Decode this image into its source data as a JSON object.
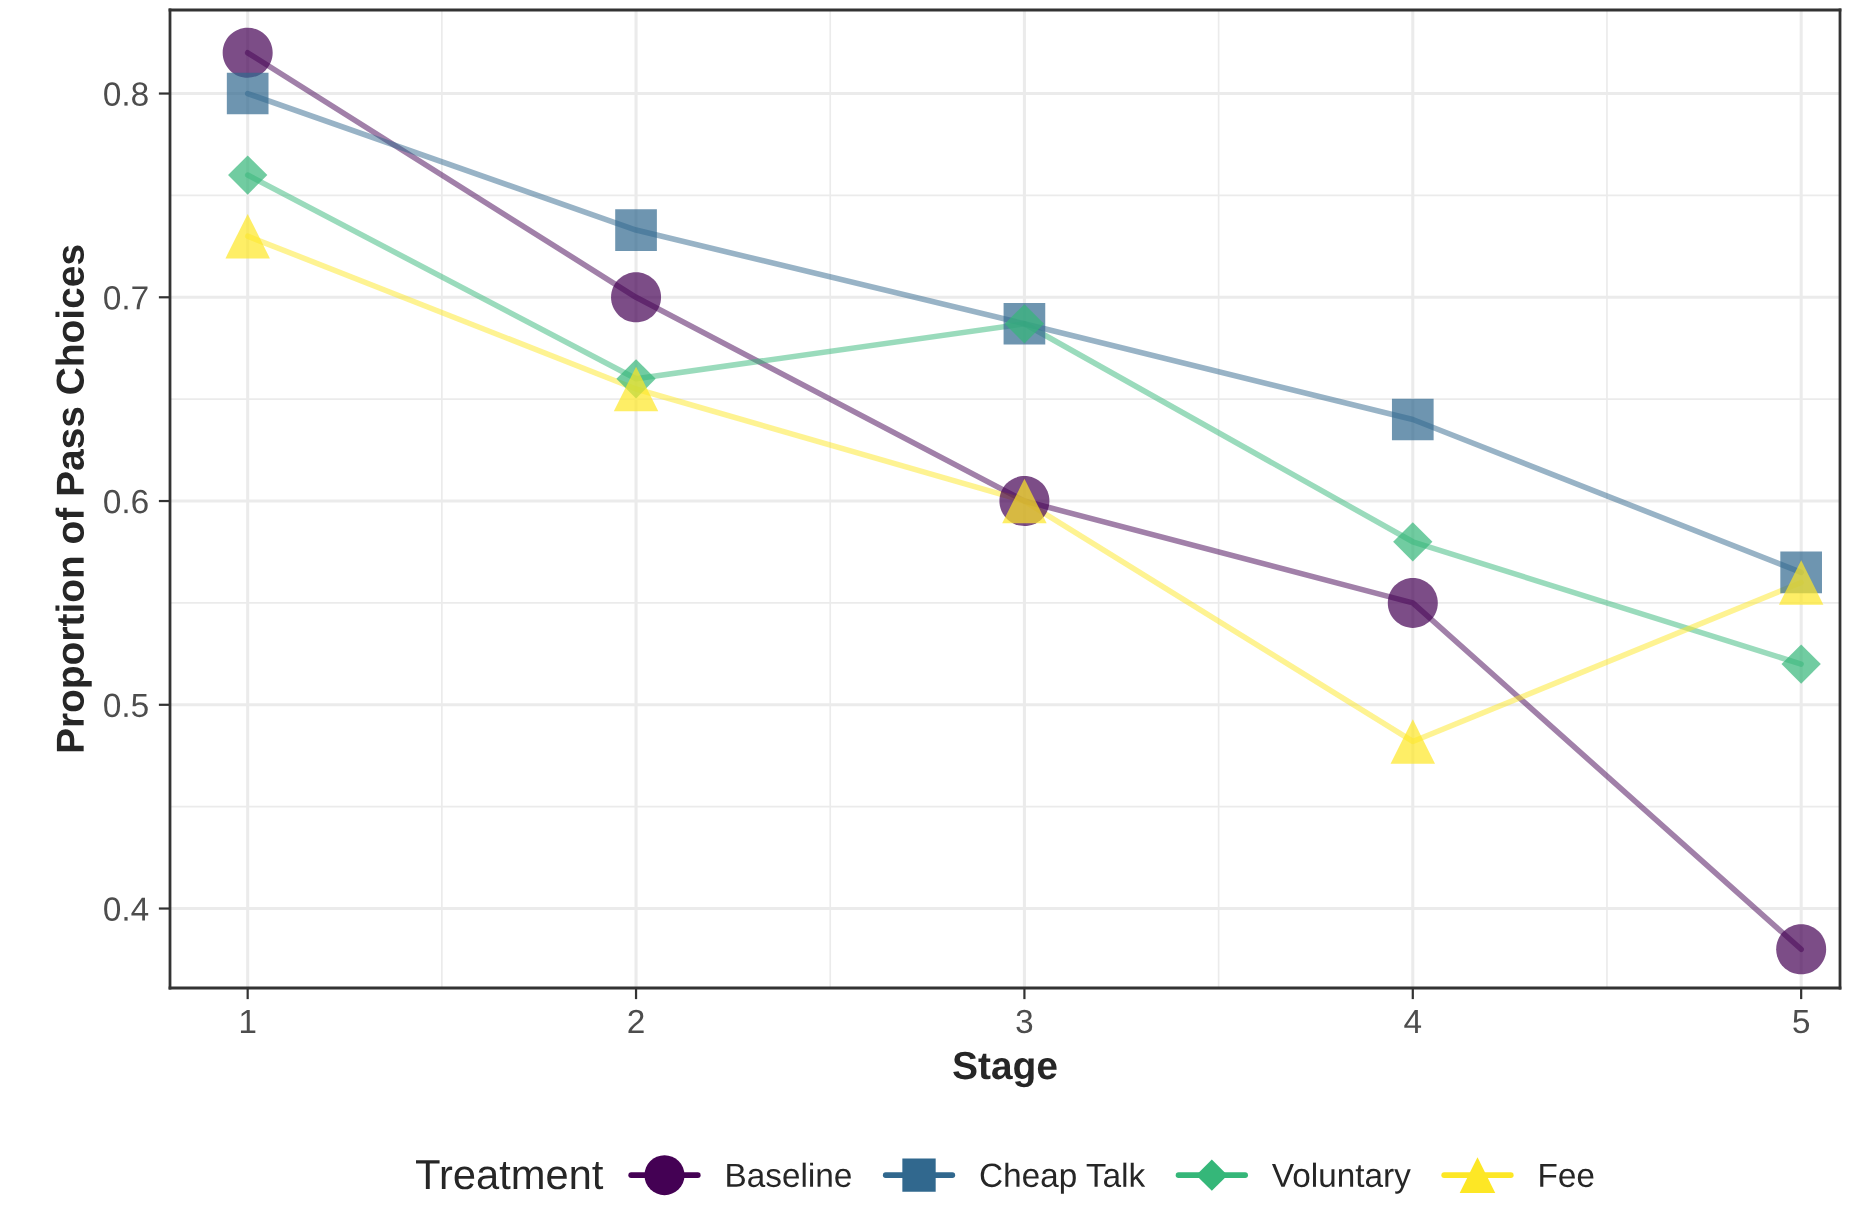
{
  "chart_data": {
    "type": "line",
    "xlabel": "Stage",
    "ylabel": "Proportion of Pass Choices",
    "legend_title": "Treatment",
    "legend": "bottom",
    "grid": true,
    "x": [
      1,
      2,
      3,
      4,
      5
    ],
    "xlim": [
      0.8,
      5.1
    ],
    "xticks": [
      1,
      2,
      3,
      4,
      5
    ],
    "ylim": [
      0.361,
      0.841
    ],
    "yticks": [
      0.4,
      0.5,
      0.6,
      0.7,
      0.8
    ],
    "series": [
      {
        "name": "Baseline",
        "color": "#440154",
        "marker": "circle",
        "values": [
          0.82,
          0.7,
          0.6,
          0.55,
          0.38
        ]
      },
      {
        "name": "Cheap Talk",
        "color": "#31688e",
        "marker": "square",
        "values": [
          0.8,
          0.733,
          0.687,
          0.64,
          0.565
        ]
      },
      {
        "name": "Voluntary",
        "color": "#35b779",
        "marker": "diamond",
        "values": [
          0.76,
          0.66,
          0.687,
          0.58,
          0.52
        ]
      },
      {
        "name": "Fee",
        "color": "#fde725",
        "marker": "triangle",
        "values": [
          0.73,
          0.655,
          0.6,
          0.482,
          0.56
        ]
      }
    ]
  }
}
